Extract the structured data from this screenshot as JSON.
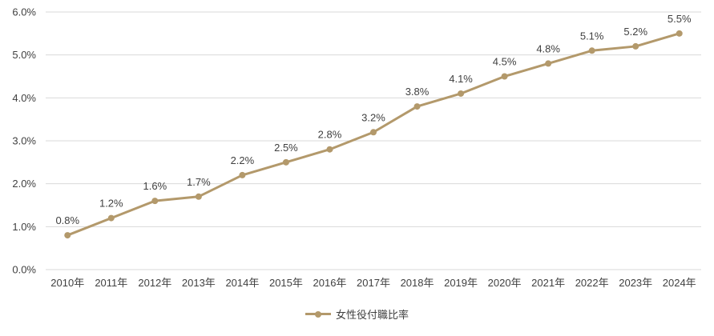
{
  "colors": {
    "series": "#B3996B",
    "gridline": "#D9D9D9",
    "text": "#404040"
  },
  "legend": {
    "label": "女性役付職比率"
  },
  "chart_data": {
    "type": "line",
    "title": "",
    "xlabel": "",
    "ylabel": "",
    "categories": [
      "2010年",
      "2011年",
      "2012年",
      "2013年",
      "2014年",
      "2015年",
      "2016年",
      "2017年",
      "2018年",
      "2019年",
      "2020年",
      "2021年",
      "2022年",
      "2023年",
      "2024年"
    ],
    "series": [
      {
        "name": "女性役付職比率",
        "values": [
          0.8,
          1.2,
          1.6,
          1.7,
          2.2,
          2.5,
          2.8,
          3.2,
          3.8,
          4.1,
          4.5,
          4.8,
          5.1,
          5.2,
          5.5
        ]
      }
    ],
    "data_labels": [
      "0.8%",
      "1.2%",
      "1.6%",
      "1.7%",
      "2.2%",
      "2.5%",
      "2.8%",
      "3.2%",
      "3.8%",
      "4.1%",
      "4.5%",
      "4.8%",
      "5.1%",
      "5.2%",
      "5.5%"
    ],
    "y_ticks": [
      "0.0%",
      "1.0%",
      "2.0%",
      "3.0%",
      "4.0%",
      "5.0%",
      "6.0%"
    ],
    "ylim": [
      0,
      6
    ],
    "grid": "horizontal",
    "legend_position": "bottom"
  }
}
